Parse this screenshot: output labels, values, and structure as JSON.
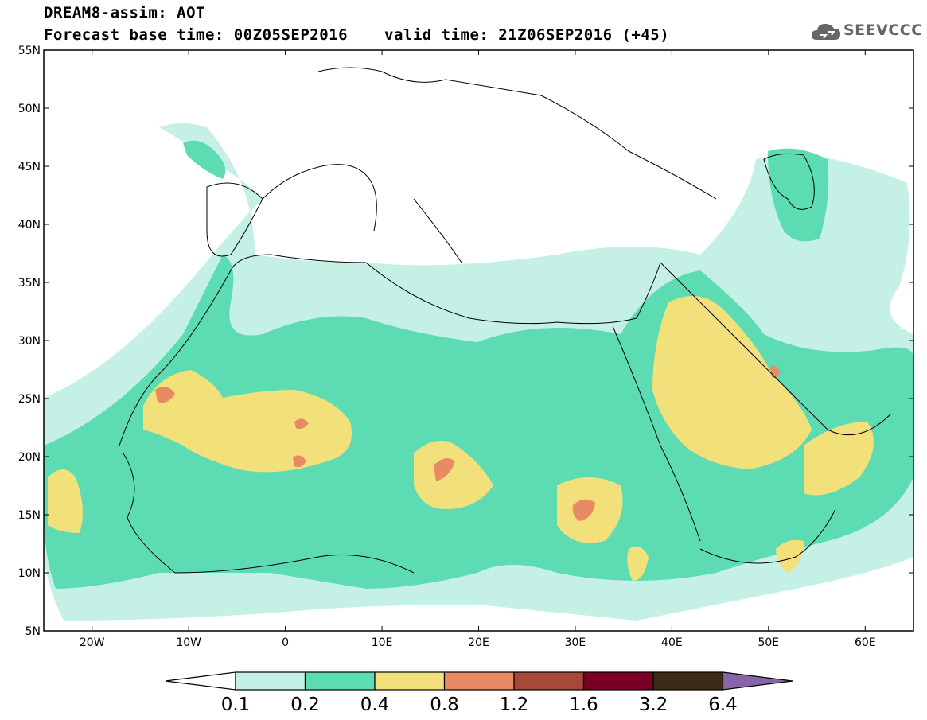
{
  "header": {
    "title": "DREAM8-assim: AOT",
    "base_time": "Forecast base time: 00Z05SEP2016",
    "valid_time": "valid time: 21Z06SEP2016 (+45)",
    "logo_text": "SEEVCCC",
    "logo_icon": "cloud-icon"
  },
  "map": {
    "lat_range": [
      5,
      55
    ],
    "lon_range": [
      -25,
      65
    ],
    "lat_ticks": [
      "5N",
      "10N",
      "15N",
      "20N",
      "25N",
      "30N",
      "35N",
      "40N",
      "45N",
      "50N",
      "55N"
    ],
    "lon_ticks": [
      "20W",
      "10W",
      "0",
      "10E",
      "20E",
      "30E",
      "40E",
      "50E",
      "60E"
    ],
    "lon_tick_values": [
      -20,
      -10,
      0,
      10,
      20,
      30,
      40,
      50,
      60
    ],
    "lat_tick_values": [
      5,
      10,
      15,
      20,
      25,
      30,
      35,
      40,
      45,
      50,
      55
    ]
  },
  "colorbar": {
    "labels": [
      "0.1",
      "0.2",
      "0.4",
      "0.8",
      "1.2",
      "1.6",
      "3.2",
      "6.4"
    ],
    "colors": [
      "#ffffff",
      "#c4f0e6",
      "#5ddcb4",
      "#f2e07a",
      "#e88a64",
      "#a8483a",
      "#7a0026",
      "#3d2a14",
      "#8a64a8"
    ]
  }
}
